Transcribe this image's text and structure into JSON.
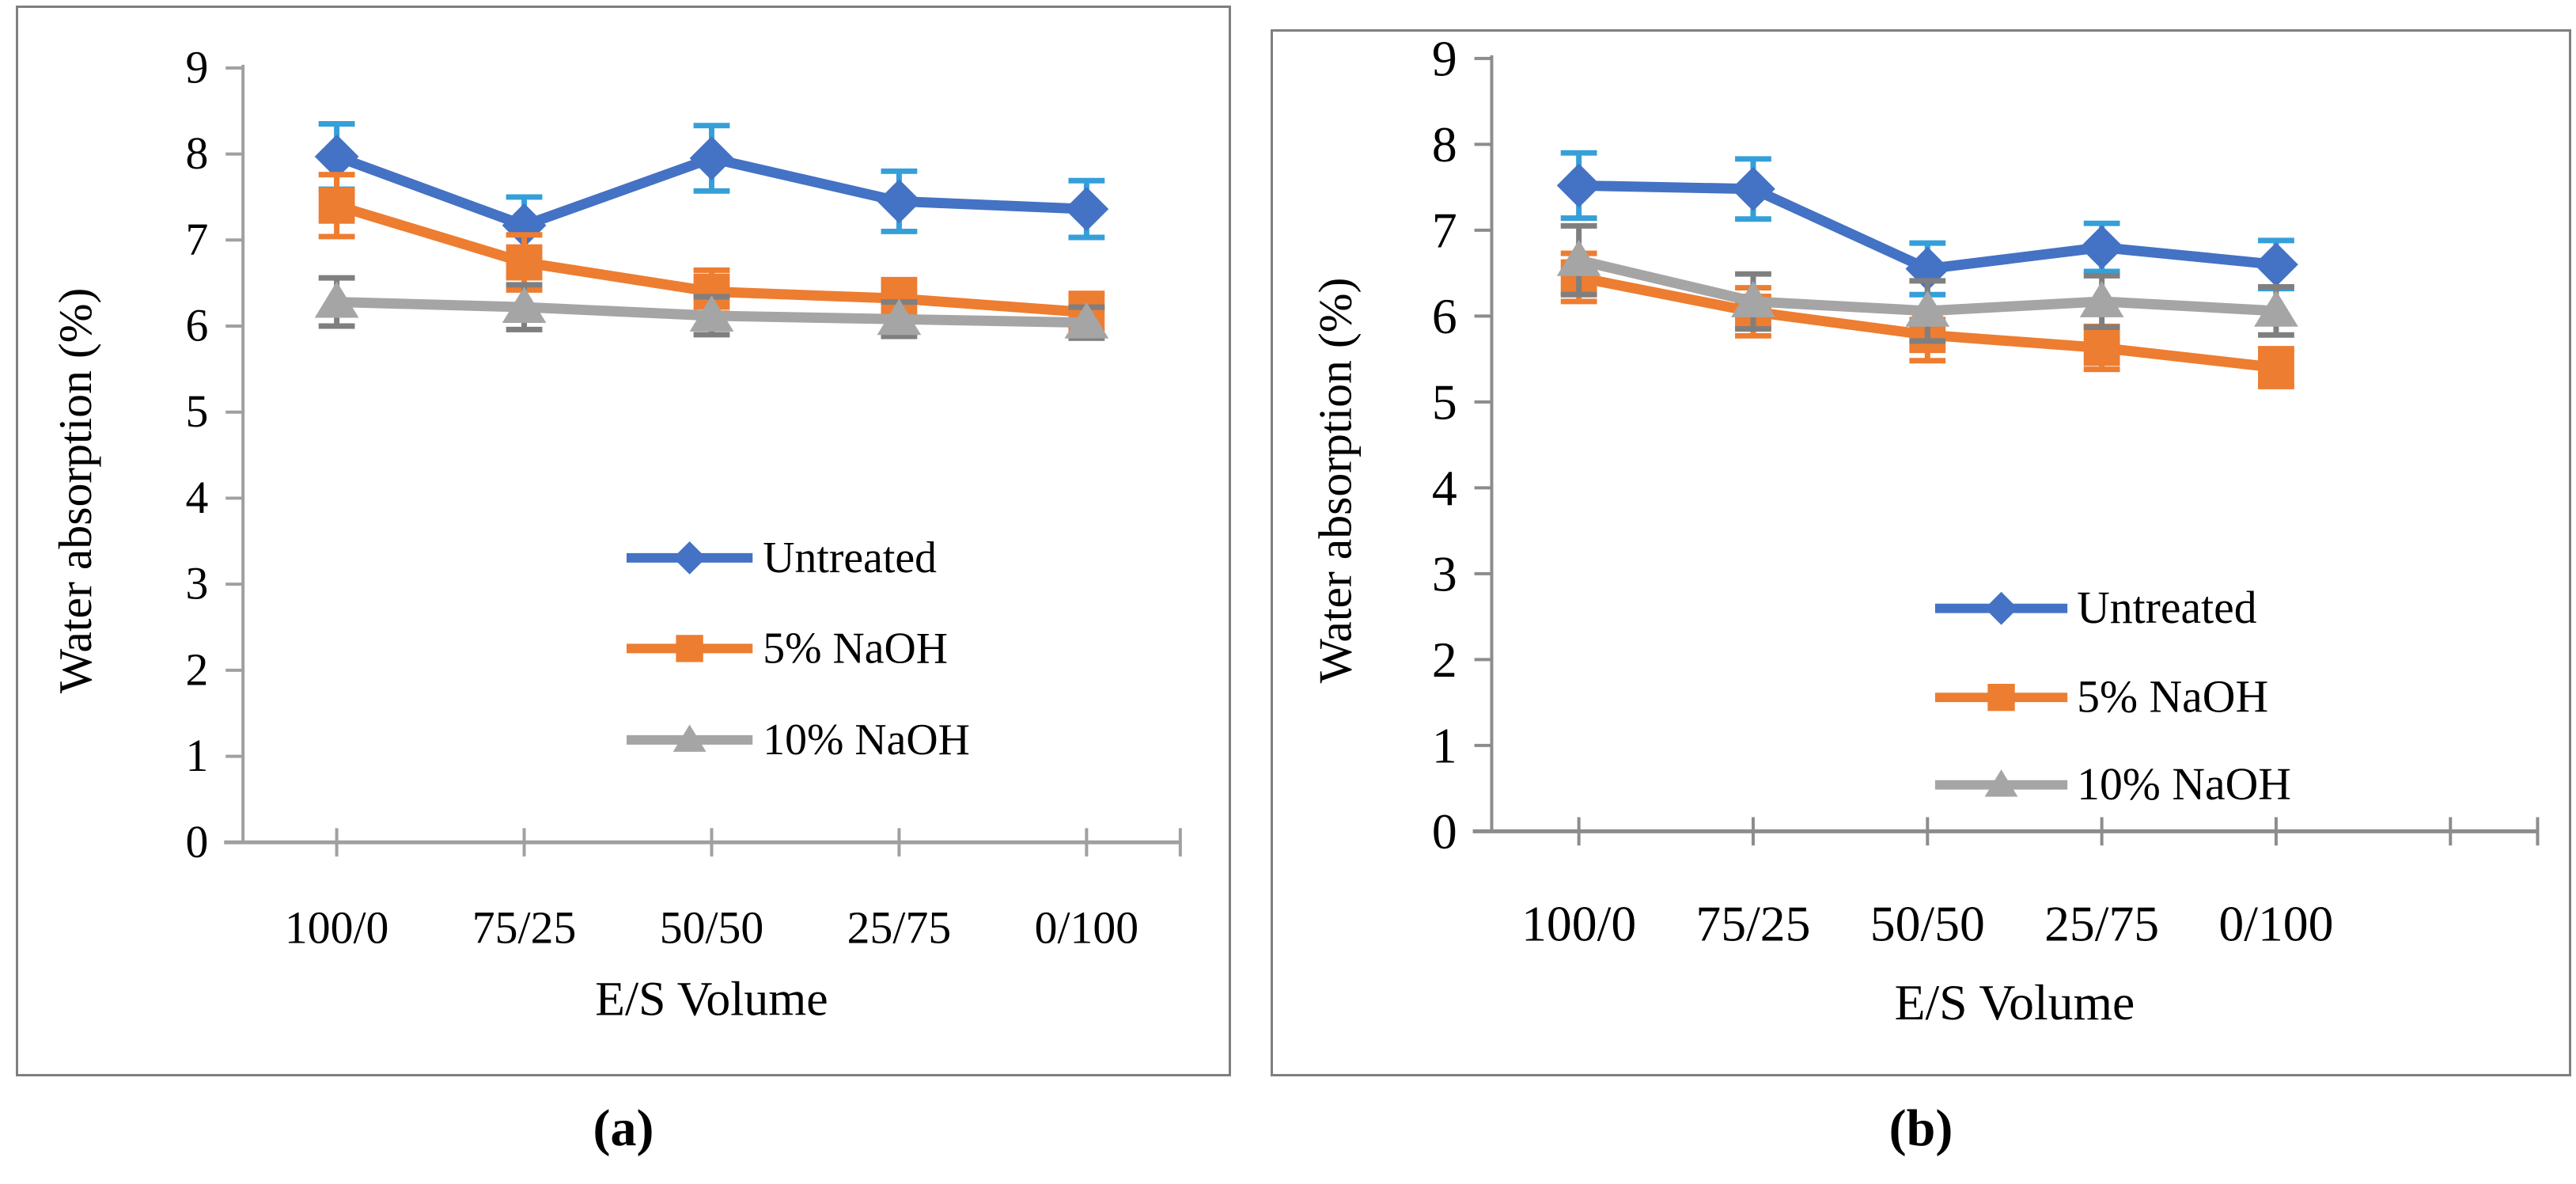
{
  "figure": {
    "background": "#ffffff"
  },
  "captions": {
    "a": "(a)",
    "b": "(b)"
  },
  "chart_data": [
    {
      "id": "a",
      "type": "line",
      "title": "",
      "xlabel": "E/S Volume",
      "ylabel": "Water absorption (%)",
      "categories": [
        "100/0",
        "75/25",
        "50/50",
        "25/75",
        "0/100"
      ],
      "ylim": [
        0,
        9
      ],
      "yticks": [
        0,
        1,
        2,
        3,
        4,
        5,
        6,
        7,
        8,
        9
      ],
      "grid": false,
      "legend_position": "inside-center-right",
      "axis_color": "#a0a0a0",
      "text_color": "#000000",
      "error_bars": true,
      "series": [
        {
          "name": "Untreated",
          "marker": "diamond",
          "color": "#4472C4",
          "error_color": "#359fd9",
          "values": [
            7.97,
            7.17,
            7.95,
            7.45,
            7.36
          ],
          "errors": [
            0.38,
            0.33,
            0.38,
            0.35,
            0.33
          ]
        },
        {
          "name": "5% NaOH",
          "marker": "square",
          "color": "#ED7D31",
          "error_color": "#ED7D31",
          "values": [
            7.4,
            6.74,
            6.4,
            6.32,
            6.16
          ],
          "errors": [
            0.36,
            0.32,
            0.25,
            0.22,
            0.22
          ]
        },
        {
          "name": "10% NaOH",
          "marker": "triangle",
          "color": "#A5A5A5",
          "error_color": "#7f7f7f",
          "values": [
            6.28,
            6.22,
            6.12,
            6.08,
            6.04
          ],
          "errors": [
            0.28,
            0.26,
            0.22,
            0.2,
            0.18
          ]
        }
      ]
    },
    {
      "id": "b",
      "type": "line",
      "title": "",
      "xlabel": "E/S Volume",
      "ylabel": "Water absorption (%)",
      "categories": [
        "100/0",
        "75/25",
        "50/50",
        "25/75",
        "0/100"
      ],
      "ylim": [
        0,
        9
      ],
      "yticks": [
        0,
        1,
        2,
        3,
        4,
        5,
        6,
        7,
        8,
        9
      ],
      "grid": false,
      "legend_position": "inside-center-right",
      "axis_color": "#8c8c8c",
      "text_color": "#000000",
      "error_bars": true,
      "series": [
        {
          "name": "Untreated",
          "marker": "diamond",
          "color": "#4472C4",
          "error_color": "#359fd9",
          "values": [
            7.52,
            7.48,
            6.55,
            6.8,
            6.6
          ],
          "errors": [
            0.38,
            0.35,
            0.3,
            0.28,
            0.28
          ]
        },
        {
          "name": "5% NaOH",
          "marker": "square",
          "color": "#ED7D31",
          "error_color": "#ED7D31",
          "values": [
            6.45,
            6.05,
            5.78,
            5.63,
            5.4
          ],
          "errors": [
            0.28,
            0.28,
            0.3,
            0.25,
            0.22
          ]
        },
        {
          "name": "10% NaOH",
          "marker": "triangle",
          "color": "#A5A5A5",
          "error_color": "#7f7f7f",
          "values": [
            6.65,
            6.17,
            6.06,
            6.17,
            6.06
          ],
          "errors": [
            0.4,
            0.32,
            0.35,
            0.3,
            0.28
          ]
        }
      ]
    }
  ]
}
